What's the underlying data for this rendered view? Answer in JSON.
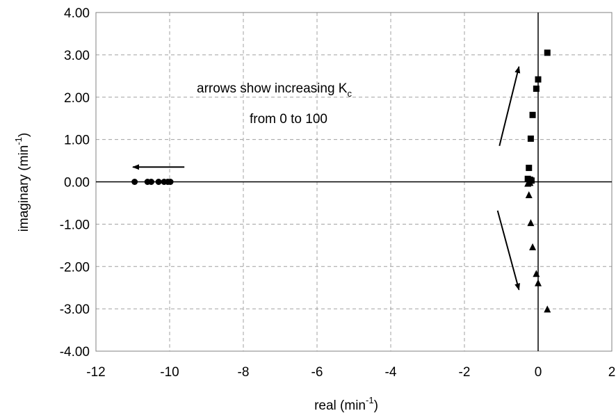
{
  "chart_data": {
    "type": "scatter",
    "title": "",
    "xlabel": {
      "base": "real (min",
      "sup": "-1",
      "tail": ")"
    },
    "ylabel": {
      "base": "imaginary (min",
      "sup": "-1",
      "tail": ")"
    },
    "xlim": [
      -12,
      2
    ],
    "ylim": [
      -4,
      4
    ],
    "xticks": [
      -12,
      -10,
      -8,
      -6,
      -4,
      -2,
      0,
      2
    ],
    "yticks": [
      4,
      3,
      2,
      1,
      0,
      -1,
      -2,
      -3,
      -4
    ],
    "xtick_labels": [
      "-12",
      "-10",
      "-8",
      "-6",
      "-4",
      "-2",
      "0",
      "2"
    ],
    "ytick_labels": [
      "4.00",
      "3.00",
      "2.00",
      "1.00",
      "0.00",
      "-1.00",
      "-2.00",
      "-3.00",
      "-4.00"
    ],
    "grid": true,
    "series": [
      {
        "marker": "circle",
        "points": [
          [
            -10.95,
            0.0
          ],
          [
            -10.6,
            0.0
          ],
          [
            -10.5,
            0.0
          ],
          [
            -10.3,
            0.0
          ],
          [
            -10.15,
            0.0
          ],
          [
            -10.05,
            0.0
          ],
          [
            -9.98,
            0.0
          ]
        ]
      },
      {
        "marker": "square",
        "points": [
          [
            0.25,
            3.05
          ],
          [
            0.0,
            2.42
          ],
          [
            -0.05,
            2.2
          ],
          [
            -0.15,
            1.58
          ],
          [
            -0.2,
            1.02
          ],
          [
            -0.25,
            0.33
          ],
          [
            -0.28,
            0.07
          ],
          [
            -0.22,
            0.05
          ],
          [
            -0.18,
            0.03
          ]
        ]
      },
      {
        "marker": "triangle",
        "points": [
          [
            0.25,
            -3.02
          ],
          [
            0.0,
            -2.4
          ],
          [
            -0.05,
            -2.18
          ],
          [
            -0.15,
            -1.55
          ],
          [
            -0.2,
            -0.98
          ],
          [
            -0.25,
            -0.32
          ],
          [
            -0.28,
            -0.05
          ],
          [
            -0.22,
            -0.03
          ]
        ]
      }
    ],
    "annotations": {
      "line1": "arrows show increasing K",
      "line1_sub": "c",
      "line2": "from 0 to 100"
    },
    "arrows": [
      {
        "from": [
          -9.6,
          0.35
        ],
        "to": [
          -11.0,
          0.35
        ]
      },
      {
        "from": [
          -1.05,
          0.85
        ],
        "to": [
          -0.52,
          2.72
        ]
      },
      {
        "from": [
          -1.1,
          -0.68
        ],
        "to": [
          -0.52,
          -2.55
        ]
      }
    ]
  }
}
